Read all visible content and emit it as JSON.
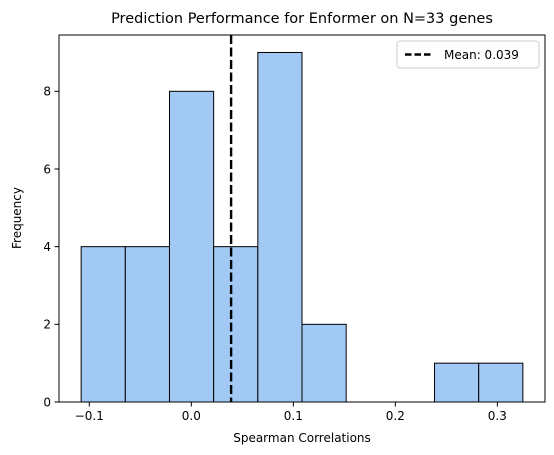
{
  "chart_data": {
    "type": "bar",
    "title": "Prediction Performance for Enformer on N=33 genes",
    "xlabel": "Spearman Correlations",
    "ylabel": "Frequency",
    "bin_edges": [
      -0.108,
      -0.0647,
      -0.0214,
      0.0219,
      0.0652,
      0.1085,
      0.1518,
      0.1951,
      0.2384,
      0.2817,
      0.325
    ],
    "values": [
      4,
      4,
      8,
      4,
      9,
      2,
      0,
      0,
      1,
      1
    ],
    "xlim": [
      -0.1297,
      0.3467
    ],
    "ylim": [
      0,
      9.45
    ],
    "xticks": [
      -0.1,
      0.0,
      0.1,
      0.2,
      0.3
    ],
    "xtick_labels": [
      "−0.1",
      "0.0",
      "0.1",
      "0.2",
      "0.3"
    ],
    "yticks": [
      0,
      2,
      4,
      6,
      8
    ],
    "ytick_labels": [
      "0",
      "2",
      "4",
      "6",
      "8"
    ],
    "mean": 0.039,
    "legend": {
      "label": "Mean: 0.039",
      "placement": "upper-right"
    },
    "grid": false,
    "colors": {
      "bar_fill": "#a1c9f4",
      "bar_edge": "#000000",
      "mean_line": "#000000"
    }
  }
}
